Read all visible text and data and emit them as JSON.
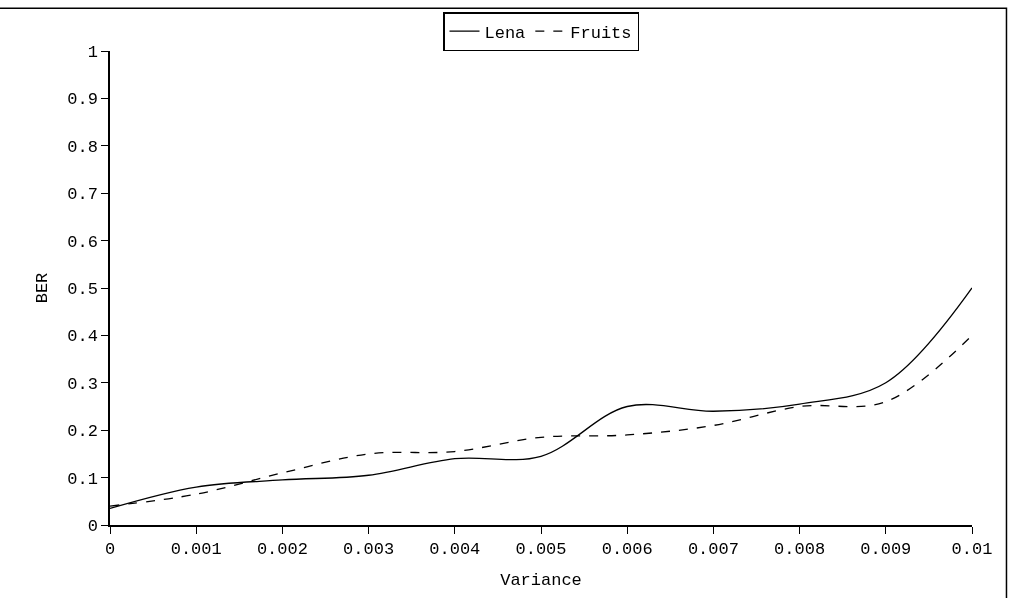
{
  "chart_data": {
    "type": "line",
    "xlabel": "Variance",
    "ylabel": "BER",
    "x": [
      0,
      0.001,
      0.002,
      0.003,
      0.004,
      0.005,
      0.006,
      0.007,
      0.008,
      0.009,
      0.01
    ],
    "series": [
      {
        "name": "Lena",
        "color": "#000000",
        "line_style": "solid",
        "values": [
          0.035,
          0.08,
          0.095,
          0.105,
          0.14,
          0.145,
          0.25,
          0.24,
          0.255,
          0.3,
          0.5
        ]
      },
      {
        "name": "Fruits",
        "color": "#000000",
        "line_style": "dashed",
        "values": [
          0.04,
          0.065,
          0.11,
          0.15,
          0.155,
          0.185,
          0.19,
          0.21,
          0.25,
          0.26,
          0.4
        ]
      }
    ],
    "xlim": [
      0,
      0.01
    ],
    "xticks": [
      0,
      0.001,
      0.002,
      0.003,
      0.004,
      0.005,
      0.006,
      0.007,
      0.008,
      0.009,
      0.01
    ],
    "ylim": [
      0,
      1
    ],
    "yticks": [
      0,
      0.1,
      0.2,
      0.3,
      0.4,
      0.5,
      0.6,
      0.7,
      0.8,
      0.9,
      1
    ],
    "legend": "top",
    "marker": "none"
  }
}
